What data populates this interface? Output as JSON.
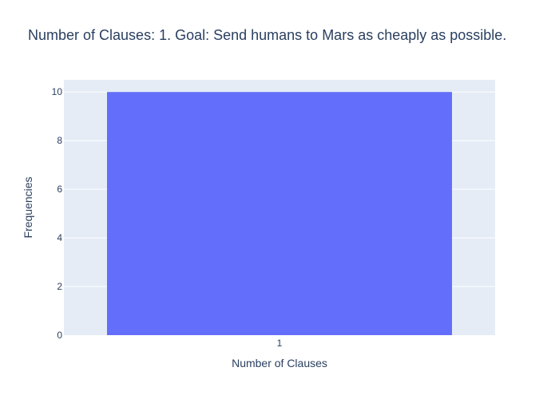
{
  "colors": {
    "plot_background": "#e5ecf6",
    "grid": "#ffffff",
    "bar": "#636efa",
    "text": "#2a3f5f",
    "tick_text": "#2a3f5f"
  },
  "chart_data": {
    "type": "bar",
    "title": "Number of Clauses: 1. Goal: Send humans to Mars as cheaply as possible.",
    "xlabel": "Number of Clauses",
    "ylabel": "Frequencies",
    "categories": [
      "1"
    ],
    "values": [
      10
    ],
    "ylim": [
      0,
      10.5
    ],
    "yticks": [
      0,
      2,
      4,
      6,
      8,
      10
    ],
    "grid": true,
    "legend": false
  }
}
